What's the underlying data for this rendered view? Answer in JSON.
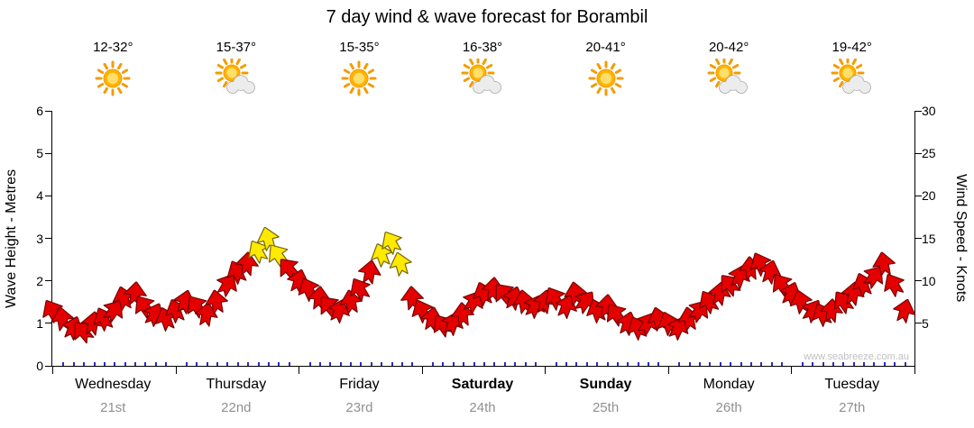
{
  "title": "7 day wind & wave forecast for Borambil",
  "watermark": "www.seabreeze.com.au",
  "forecast": {
    "days": [
      {
        "name": "Wednesday",
        "date": "21st",
        "temp": "12-32°",
        "icon": "sun",
        "bold": false
      },
      {
        "name": "Thursday",
        "date": "22nd",
        "temp": "15-37°",
        "icon": "sun-cloud",
        "bold": false
      },
      {
        "name": "Friday",
        "date": "23rd",
        "temp": "15-35°",
        "icon": "sun",
        "bold": false
      },
      {
        "name": "Saturday",
        "date": "24th",
        "temp": "16-38°",
        "icon": "sun-cloud",
        "bold": true
      },
      {
        "name": "Sunday",
        "date": "25th",
        "temp": "20-41°",
        "icon": "sun",
        "bold": true
      },
      {
        "name": "Monday",
        "date": "26th",
        "temp": "20-42°",
        "icon": "sun-cloud",
        "bold": false
      },
      {
        "name": "Tuesday",
        "date": "27th",
        "temp": "19-42°",
        "icon": "sun-cloud",
        "bold": false
      }
    ]
  },
  "axes": {
    "left_label": "Wave Height - Metres",
    "right_label": "Wind Speed - Knots",
    "left_ticks": [
      0,
      1,
      2,
      3,
      4,
      5,
      6
    ],
    "right_ticks": [
      5,
      10,
      15,
      20,
      25,
      30
    ]
  },
  "colors": {
    "arrow_red": "#E50000",
    "arrow_red_outline": "#7A0000",
    "arrow_yellow": "#FFE900",
    "arrow_yellow_outline": "#7A6A00",
    "axis": "#000000",
    "minor_tick_blue": "#2A2AC8",
    "date_text": "#909090",
    "watermark_text": "#C0C0C0",
    "sun": "#FFB300",
    "sun_rays": "#F29C00",
    "cloud": "#ECECEC"
  },
  "chart_data": {
    "type": "scatter",
    "title": "7 day wind & wave forecast for Borambil",
    "grid": false,
    "legend_position": "none",
    "x_axis": {
      "unit": "day (0 = start of Wednesday 21st, 2-hour steps)",
      "range": [
        0,
        7
      ],
      "tick_labels": [
        "Wednesday 21st",
        "Thursday 22nd",
        "Friday 23rd",
        "Saturday 24th",
        "Sunday 25th",
        "Monday 26th",
        "Tuesday 27th"
      ]
    },
    "y_left_axis": {
      "label": "Wave Height - Metres",
      "range": [
        0,
        6
      ],
      "ticks": [
        0,
        1,
        2,
        3,
        4,
        5,
        6
      ]
    },
    "y_right_axis": {
      "label": "Wind Speed - Knots",
      "range": [
        0,
        30
      ],
      "ticks": [
        5,
        10,
        15,
        20,
        25,
        30
      ]
    },
    "series": [
      {
        "name": "Wind speed (knots), drawn as wind-direction arrows",
        "marker": "wind-arrow",
        "point_format": [
          "x_day",
          "knots",
          "arrow_rotation_deg",
          "color: r=red, y=yellow"
        ],
        "points": [
          [
            0.0,
            6.5,
            -30,
            "r"
          ],
          [
            0.08,
            5.5,
            -10,
            "r"
          ],
          [
            0.17,
            4.5,
            20,
            "r"
          ],
          [
            0.25,
            4.0,
            -40,
            "r"
          ],
          [
            0.33,
            5.0,
            10,
            "r"
          ],
          [
            0.42,
            5.5,
            -25,
            "r"
          ],
          [
            0.5,
            6.5,
            35,
            "r"
          ],
          [
            0.58,
            8.0,
            -15,
            "r"
          ],
          [
            0.67,
            8.5,
            5,
            "r"
          ],
          [
            0.75,
            7.0,
            -35,
            "r"
          ],
          [
            0.83,
            6.0,
            25,
            "r"
          ],
          [
            0.92,
            5.5,
            -20,
            "r"
          ],
          [
            1.0,
            6.5,
            -20,
            "r"
          ],
          [
            1.08,
            7.5,
            15,
            "r"
          ],
          [
            1.17,
            7.0,
            -35,
            "r"
          ],
          [
            1.25,
            6.0,
            10,
            "r"
          ],
          [
            1.33,
            7.5,
            -10,
            "r"
          ],
          [
            1.42,
            9.5,
            30,
            "r"
          ],
          [
            1.5,
            11.0,
            -25,
            "r"
          ],
          [
            1.58,
            12.0,
            5,
            "r"
          ],
          [
            1.67,
            13.5,
            -30,
            "y"
          ],
          [
            1.75,
            15.0,
            -15,
            "y"
          ],
          [
            1.83,
            13.0,
            -35,
            "y"
          ],
          [
            1.92,
            11.5,
            -40,
            "r"
          ],
          [
            2.0,
            10.0,
            15,
            "r"
          ],
          [
            2.08,
            9.0,
            -25,
            "r"
          ],
          [
            2.17,
            8.0,
            5,
            "r"
          ],
          [
            2.25,
            7.0,
            -40,
            "r"
          ],
          [
            2.33,
            6.5,
            20,
            "r"
          ],
          [
            2.42,
            7.5,
            -10,
            "r"
          ],
          [
            2.5,
            9.0,
            -30,
            "r"
          ],
          [
            2.58,
            11.0,
            10,
            "r"
          ],
          [
            2.67,
            13.0,
            -20,
            "y"
          ],
          [
            2.75,
            14.5,
            -30,
            "y"
          ],
          [
            2.83,
            12.0,
            -15,
            "y"
          ],
          [
            2.92,
            8.0,
            -5,
            "r"
          ],
          [
            3.0,
            6.5,
            -25,
            "r"
          ],
          [
            3.08,
            5.5,
            10,
            "r"
          ],
          [
            3.17,
            4.8,
            -35,
            "r"
          ],
          [
            3.25,
            5.0,
            20,
            "r"
          ],
          [
            3.33,
            6.0,
            -5,
            "r"
          ],
          [
            3.42,
            7.5,
            30,
            "r"
          ],
          [
            3.5,
            8.5,
            -20,
            "r"
          ],
          [
            3.58,
            9.0,
            5,
            "r"
          ],
          [
            3.67,
            8.5,
            -40,
            "r"
          ],
          [
            3.75,
            8.0,
            15,
            "r"
          ],
          [
            3.83,
            7.5,
            -10,
            "r"
          ],
          [
            3.92,
            7.0,
            25,
            "r"
          ],
          [
            4.0,
            7.5,
            10,
            "r"
          ],
          [
            4.08,
            8.0,
            -30,
            "r"
          ],
          [
            4.17,
            7.0,
            20,
            "r"
          ],
          [
            4.25,
            8.5,
            -10,
            "r"
          ],
          [
            4.33,
            7.5,
            35,
            "r"
          ],
          [
            4.42,
            6.5,
            -20,
            "r"
          ],
          [
            4.5,
            7.0,
            5,
            "r"
          ],
          [
            4.58,
            6.0,
            -35,
            "r"
          ],
          [
            4.67,
            5.0,
            15,
            "r"
          ],
          [
            4.75,
            4.5,
            -25,
            "r"
          ],
          [
            4.83,
            5.0,
            30,
            "r"
          ],
          [
            4.92,
            5.5,
            -15,
            "r"
          ],
          [
            5.0,
            5.0,
            -20,
            "r"
          ],
          [
            5.08,
            4.5,
            25,
            "r"
          ],
          [
            5.17,
            5.5,
            -10,
            "r"
          ],
          [
            5.25,
            6.5,
            35,
            "r"
          ],
          [
            5.33,
            7.5,
            -30,
            "r"
          ],
          [
            5.42,
            8.5,
            10,
            "r"
          ],
          [
            5.5,
            9.5,
            -40,
            "r"
          ],
          [
            5.58,
            10.5,
            20,
            "r"
          ],
          [
            5.67,
            11.5,
            -5,
            "r"
          ],
          [
            5.75,
            12.0,
            -25,
            "r"
          ],
          [
            5.83,
            11.0,
            15,
            "r"
          ],
          [
            5.92,
            9.5,
            -35,
            "r"
          ],
          [
            6.0,
            8.5,
            20,
            "r"
          ],
          [
            6.08,
            7.5,
            -15,
            "r"
          ],
          [
            6.17,
            6.5,
            30,
            "r"
          ],
          [
            6.25,
            6.0,
            -25,
            "r"
          ],
          [
            6.33,
            6.5,
            5,
            "r"
          ],
          [
            6.42,
            7.5,
            -35,
            "r"
          ],
          [
            6.5,
            8.5,
            10,
            "r"
          ],
          [
            6.58,
            9.5,
            -20,
            "r"
          ],
          [
            6.67,
            10.5,
            35,
            "r"
          ],
          [
            6.75,
            12.0,
            -10,
            "r"
          ],
          [
            6.83,
            9.5,
            -30,
            "r"
          ],
          [
            6.92,
            6.5,
            15,
            "r"
          ]
        ]
      }
    ]
  }
}
